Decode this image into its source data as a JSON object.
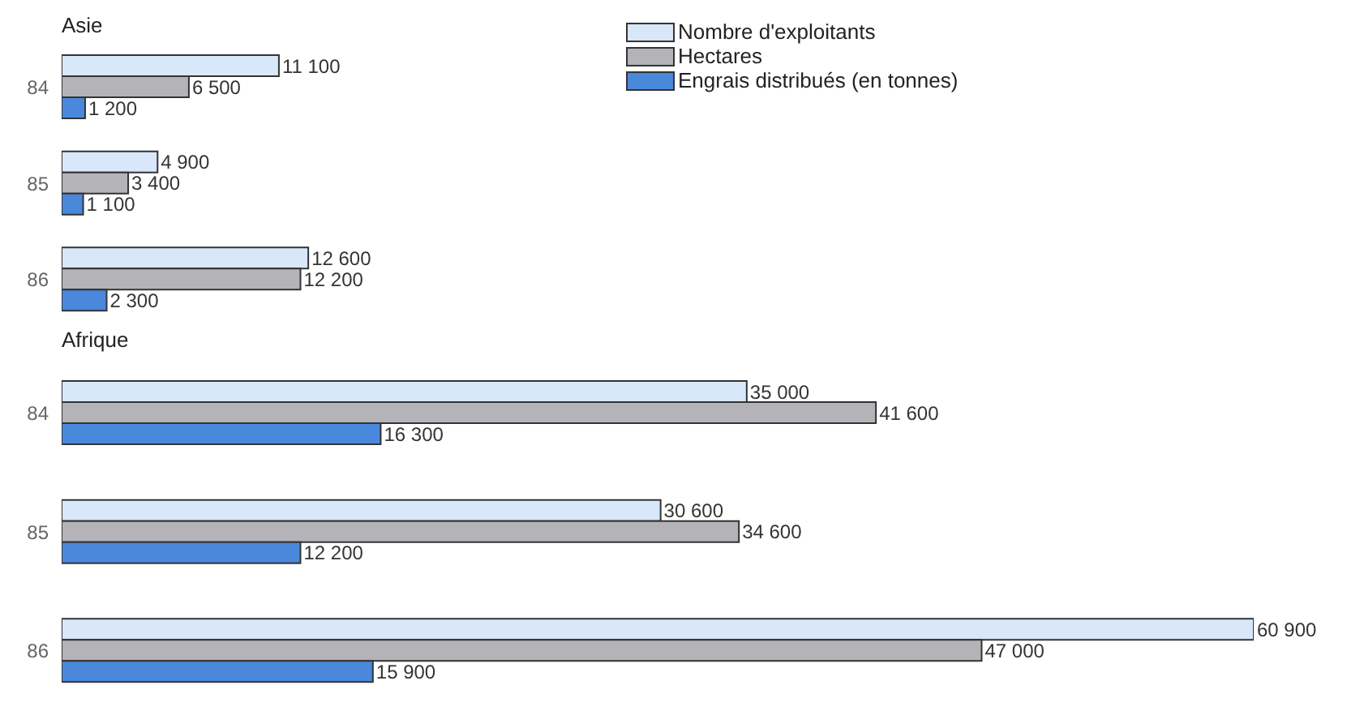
{
  "chart_data": [
    {
      "type": "bar",
      "title": "Asie",
      "orientation": "horizontal",
      "categories": [
        "84",
        "85",
        "86"
      ],
      "tick_labels": "y",
      "data_labels": true,
      "legend": "top",
      "series": [
        {
          "name": "Nombre d'exploitants",
          "color": "#d8e8fa",
          "values": [
            11100,
            4900,
            12600
          ]
        },
        {
          "name": "Hectares",
          "color": "#b4b4b8",
          "values": [
            6500,
            3400,
            12200
          ]
        },
        {
          "name": "Engrais distribués (en tonnes)",
          "color": "#4a88dc",
          "values": [
            1200,
            1100,
            2300
          ]
        }
      ]
    },
    {
      "type": "bar",
      "title": "Afrique",
      "orientation": "horizontal",
      "categories": [
        "84",
        "85",
        "86"
      ],
      "tick_labels": "y",
      "data_labels": true,
      "series": [
        {
          "color": "#d8e8fa",
          "values": [
            35000,
            30600,
            60900
          ]
        },
        {
          "color": "#b4b4b8",
          "values": [
            41600,
            34600,
            47000
          ]
        },
        {
          "color": "#4a88dc",
          "values": [
            16300,
            12200,
            15900
          ]
        }
      ]
    }
  ]
}
